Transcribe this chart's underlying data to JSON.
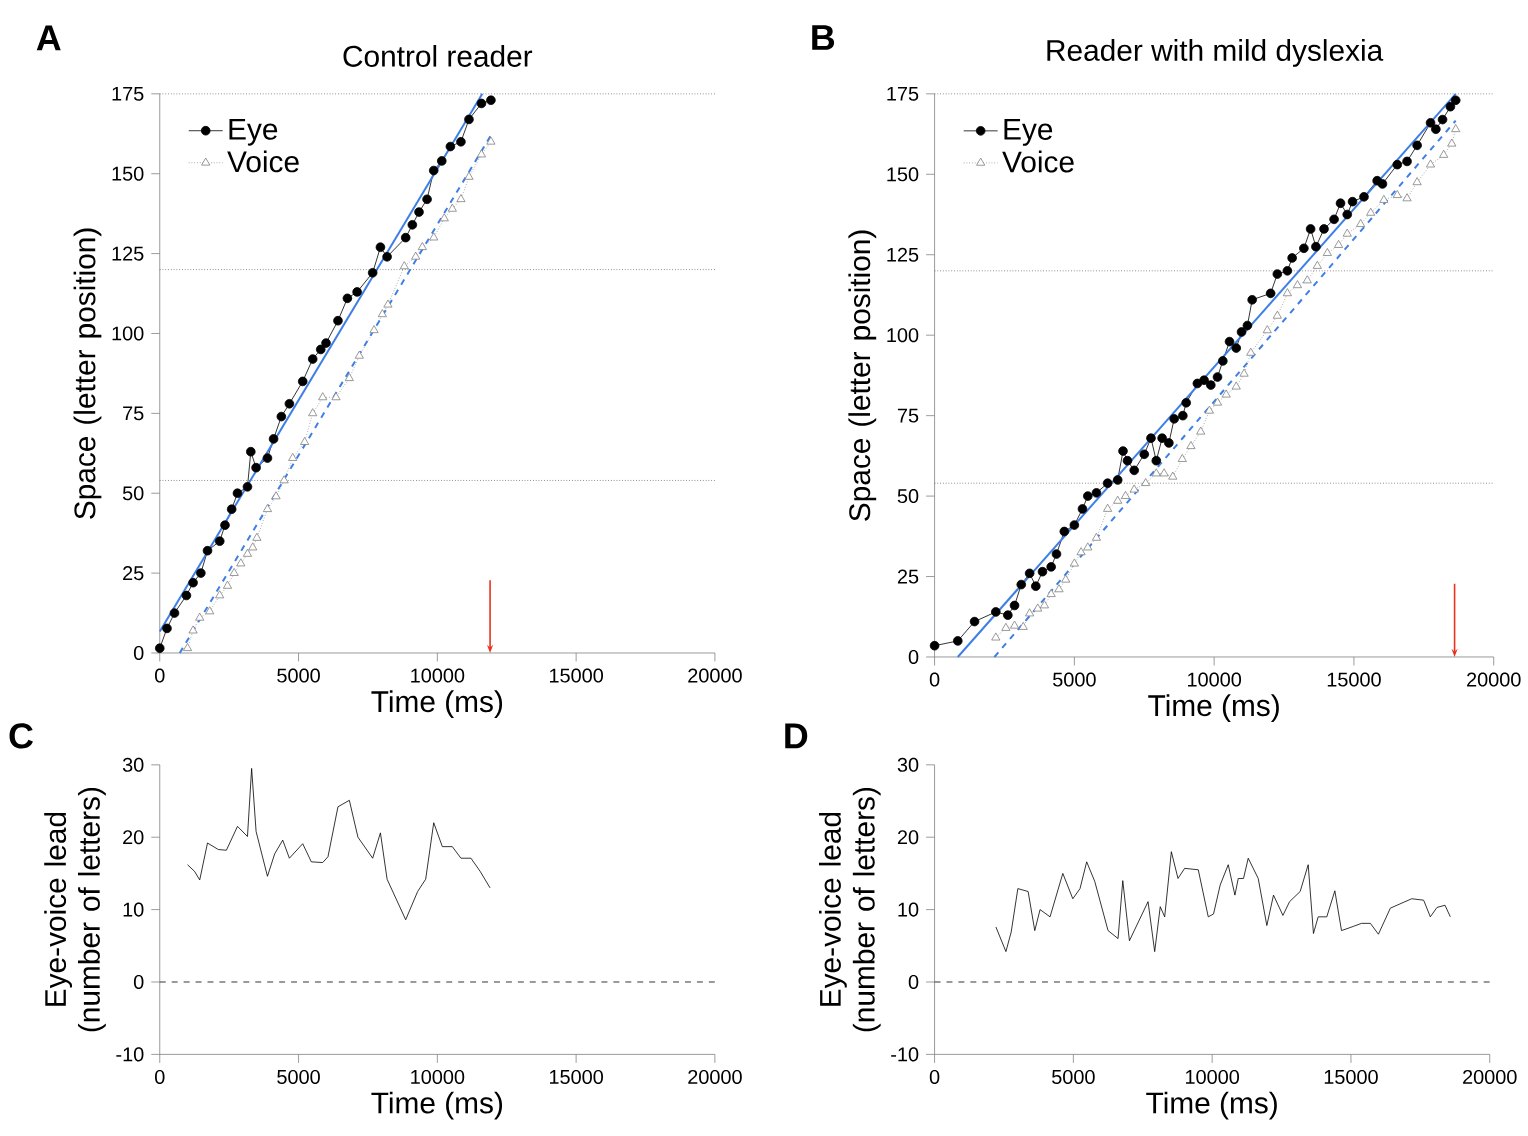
{
  "chart_data": [
    {
      "type": "line",
      "title": "Control reader",
      "xlabel": "Time (ms)",
      "ylabel": "Space (letter position)",
      "annotations": [
        "A"
      ],
      "legend": "top left",
      "xlim": [
        0,
        20000
      ],
      "xticks": [
        0,
        5000,
        10000,
        15000,
        20000
      ],
      "ylim": [
        0,
        175
      ],
      "yticks": [
        0,
        25,
        50,
        75,
        100,
        125,
        150,
        175
      ],
      "ref_lines": [
        {
          "axis": "y",
          "value": 175,
          "color": "#555555",
          "line_style": "dotted"
        },
        {
          "axis": "y",
          "value": 120,
          "color": "#555555",
          "line_style": "dotted"
        },
        {
          "axis": "y",
          "value": 54,
          "color": "#555555",
          "line_style": "dotted"
        },
        {
          "axis": "x",
          "value": 11900,
          "color": "#e8321e",
          "line_style": "solid"
        }
      ],
      "series": [
        {
          "name": "Eye",
          "color": "#000000",
          "marker": "circle",
          "line_style": "solid",
          "x": [
            0,
            260,
            530,
            960,
            1200,
            1480,
            1720,
            2160,
            2350,
            2590,
            2800,
            3160,
            3280,
            3470,
            3880,
            4100,
            4380,
            4670,
            5150,
            5510,
            5800,
            5990,
            6420,
            6760,
            7110,
            7670,
            7950,
            8190,
            8860,
            9100,
            9340,
            9630,
            9870,
            10160,
            10470,
            10850,
            11140,
            11590,
            11930
          ],
          "values": [
            1.5,
            7.7,
            12.5,
            18,
            22,
            25,
            32,
            35,
            40,
            45,
            50,
            52,
            63,
            58,
            61,
            67,
            74,
            78,
            85,
            92,
            95,
            97,
            104,
            111,
            113,
            119,
            127,
            124,
            130,
            134,
            138,
            142,
            151,
            154,
            158.5,
            160,
            167,
            172,
            173
          ]
        },
        {
          "name": "Voice",
          "color": "#808080",
          "marker": "triangle",
          "line_style": "dotted",
          "x": [
            1000,
            1200,
            1440,
            1800,
            2160,
            2440,
            2680,
            2920,
            3160,
            3350,
            3500,
            3880,
            4190,
            4480,
            4790,
            5220,
            5510,
            5870,
            6350,
            6830,
            7190,
            7720,
            8020,
            8220,
            8810,
            9220,
            9460,
            9870,
            10250,
            10540,
            10850,
            11140,
            11590,
            11930
          ],
          "values": [
            1.5,
            7,
            11,
            13,
            18,
            21,
            25,
            28,
            31,
            33,
            36,
            45,
            49,
            54,
            61,
            66,
            75,
            80,
            80,
            86,
            93,
            101,
            106,
            109,
            121,
            124,
            127,
            130,
            136,
            139,
            142,
            149,
            156,
            160
          ]
        },
        {
          "color": "#3d7fe6",
          "marker": "none",
          "line_style": "solid",
          "x": [
            0,
            11620
          ],
          "values": [
            6.7,
            175
          ]
        },
        {
          "color": "#3d7fe6",
          "marker": "none",
          "line_style": "dashed",
          "x": [
            720,
            11930
          ],
          "values": [
            0,
            162
          ]
        }
      ]
    },
    {
      "type": "line",
      "title": "Reader with mild dyslexia",
      "xlabel": "Time (ms)",
      "ylabel": "Space (letter position)",
      "annotations": [
        "B"
      ],
      "legend": "top left",
      "xlim": [
        0,
        20000
      ],
      "xticks": [
        0,
        5000,
        10000,
        15000,
        20000
      ],
      "ylim": [
        0,
        175
      ],
      "yticks": [
        0,
        25,
        50,
        75,
        100,
        125,
        150,
        175
      ],
      "ref_lines": [
        {
          "axis": "y",
          "value": 175,
          "color": "#555555",
          "line_style": "dotted"
        },
        {
          "axis": "y",
          "value": 120,
          "color": "#555555",
          "line_style": "dotted"
        },
        {
          "axis": "y",
          "value": 54,
          "color": "#555555",
          "line_style": "dotted"
        },
        {
          "axis": "x",
          "value": 18600,
          "color": "#e8321e",
          "line_style": "solid"
        }
      ],
      "series": [
        {
          "name": "Eye",
          "color": "#000000",
          "marker": "circle",
          "line_style": "solid",
          "x": [
            0,
            830,
            1430,
            2190,
            2620,
            2860,
            3100,
            3400,
            3620,
            3860,
            4170,
            4360,
            4640,
            5000,
            5290,
            5480,
            5790,
            6190,
            6550,
            6740,
            6900,
            7140,
            7500,
            7740,
            7930,
            8140,
            8380,
            8570,
            8880,
            9000,
            9400,
            9640,
            9880,
            10120,
            10310,
            10550,
            10790,
            10980,
            11190,
            11360,
            12020,
            12260,
            12620,
            12790,
            13210,
            13450,
            13640,
            13930,
            14290,
            14520,
            14760,
            14950,
            15360,
            15830,
            16020,
            16550,
            16900,
            17260,
            17740,
            17930,
            18170,
            18450,
            18640
          ],
          "values": [
            3.5,
            5,
            11,
            14,
            13,
            16,
            22.5,
            26,
            22,
            26.5,
            28,
            32,
            39,
            41,
            46,
            50,
            51,
            54,
            55,
            64,
            61,
            58,
            63,
            68,
            61,
            68,
            66.5,
            74,
            75,
            79,
            85,
            86,
            84.5,
            87,
            92,
            98,
            96,
            101,
            103,
            111,
            113,
            119,
            120,
            124,
            127,
            133,
            127.5,
            133,
            136,
            141,
            137.5,
            141.5,
            143,
            148,
            147,
            153,
            154,
            159,
            166,
            164,
            167,
            171,
            173
          ]
        },
        {
          "name": "Voice",
          "color": "#808080",
          "marker": "triangle",
          "line_style": "dotted",
          "x": [
            2190,
            2550,
            2860,
            3170,
            3400,
            3690,
            3930,
            4170,
            4450,
            4690,
            5000,
            5240,
            5480,
            5790,
            6190,
            6550,
            6830,
            7140,
            7550,
            7930,
            8210,
            8520,
            8860,
            9170,
            9520,
            9830,
            10120,
            10430,
            10790,
            11070,
            11310,
            11900,
            12260,
            12620,
            12980,
            13330,
            13690,
            14050,
            14450,
            14760,
            15240,
            15600,
            16070,
            16550,
            16900,
            17260,
            17740,
            18210,
            18500,
            18640
          ],
          "values": [
            6,
            9,
            9.7,
            9.3,
            13.5,
            15,
            16,
            19.5,
            21,
            24,
            29,
            32.5,
            34,
            37,
            46,
            48.5,
            50,
            52,
            54,
            57,
            57,
            56,
            61.5,
            65.5,
            70,
            76.5,
            79,
            81.5,
            84,
            88,
            94.5,
            101.5,
            106,
            113,
            115.5,
            117,
            121.5,
            125.5,
            128,
            131.5,
            134.5,
            138,
            142,
            143.5,
            142.5,
            147.5,
            153,
            156,
            159.5,
            164
          ]
        },
        {
          "color": "#3d7fe6",
          "marker": "none",
          "line_style": "solid",
          "x": [
            830,
            18640
          ],
          "values": [
            0,
            175
          ]
        },
        {
          "color": "#3d7fe6",
          "marker": "none",
          "line_style": "dashed",
          "x": [
            2140,
            18640
          ],
          "values": [
            0,
            166.7
          ]
        }
      ]
    },
    {
      "type": "line",
      "xlabel": "Time (ms)",
      "ylabel": "Eye-voice lead (number of letters)",
      "annotations": [
        "C"
      ],
      "xlim": [
        0,
        20000
      ],
      "xticks": [
        0,
        5000,
        10000,
        15000,
        20000
      ],
      "ylim": [
        -10,
        30
      ],
      "yticks": [
        -10,
        0,
        10,
        20,
        30
      ],
      "ref_lines": [
        {
          "axis": "y",
          "value": 0,
          "color": "#000000",
          "line_style": "dashed"
        }
      ],
      "series": [
        {
          "color": "#000000",
          "marker": "none",
          "line_style": "solid",
          "x": [
            1000,
            1250,
            1440,
            1720,
            2110,
            2400,
            2800,
            3160,
            3310,
            3470,
            3880,
            4140,
            4430,
            4670,
            5150,
            5460,
            5870,
            6060,
            6420,
            6830,
            7140,
            7670,
            7950,
            8190,
            8860,
            9290,
            9580,
            9870,
            10180,
            10540,
            10850,
            11210,
            11540,
            11900
          ],
          "values": [
            16.2,
            15.3,
            14.1,
            19.2,
            18.3,
            18.2,
            21.5,
            20.1,
            29.5,
            20.8,
            14.6,
            17.7,
            19.6,
            17.1,
            19.1,
            16.6,
            16.5,
            17.3,
            24.2,
            25.1,
            20,
            17.1,
            20.6,
            14.2,
            8.6,
            12.5,
            14.2,
            22,
            18.7,
            18.7,
            17.1,
            17.1,
            15.3,
            13
          ]
        }
      ]
    },
    {
      "type": "line",
      "xlabel": "Time (ms)",
      "ylabel": "Eye-voice lead (number of letters)",
      "annotations": [
        "D"
      ],
      "xlim": [
        0,
        20000
      ],
      "xticks": [
        0,
        5000,
        10000,
        15000,
        20000
      ],
      "ylim": [
        -10,
        30
      ],
      "yticks": [
        -10,
        0,
        10,
        20,
        30
      ],
      "ref_lines": [
        {
          "axis": "y",
          "value": 0,
          "color": "#000000",
          "line_style": "dashed"
        }
      ],
      "series": [
        {
          "color": "#000000",
          "marker": "none",
          "line_style": "solid",
          "x": [
            2210,
            2570,
            2760,
            3000,
            3370,
            3610,
            3800,
            4160,
            4620,
            4980,
            5240,
            5480,
            5770,
            6250,
            6610,
            6780,
            7020,
            7690,
            7930,
            8130,
            8290,
            8530,
            8770,
            9010,
            9500,
            9860,
            10050,
            10290,
            10580,
            10820,
            10940,
            11130,
            11300,
            11660,
            11970,
            12210,
            12550,
            12790,
            13170,
            13460,
            13650,
            13820,
            14130,
            14420,
            14660,
            15100,
            15380,
            15700,
            15990,
            16420,
            17190,
            17620,
            17860,
            18100,
            18390,
            18580
          ],
          "values": [
            7.6,
            4.2,
            6.9,
            12.9,
            12.5,
            7.1,
            10,
            9,
            15,
            11.5,
            12.9,
            16.6,
            13.9,
            7.1,
            6,
            14,
            5.7,
            11.1,
            4.2,
            10.4,
            9,
            18,
            14.3,
            15.7,
            15.5,
            9,
            9.4,
            13.4,
            16.2,
            12,
            14.3,
            14.3,
            17.1,
            14.3,
            7.8,
            12,
            9.2,
            11.1,
            12.5,
            16.2,
            6.7,
            9,
            9,
            12.6,
            7.1,
            7.7,
            8.1,
            8.1,
            6.6,
            10.2,
            11.5,
            11.3,
            9,
            10.3,
            10.6,
            9
          ]
        }
      ]
    }
  ]
}
